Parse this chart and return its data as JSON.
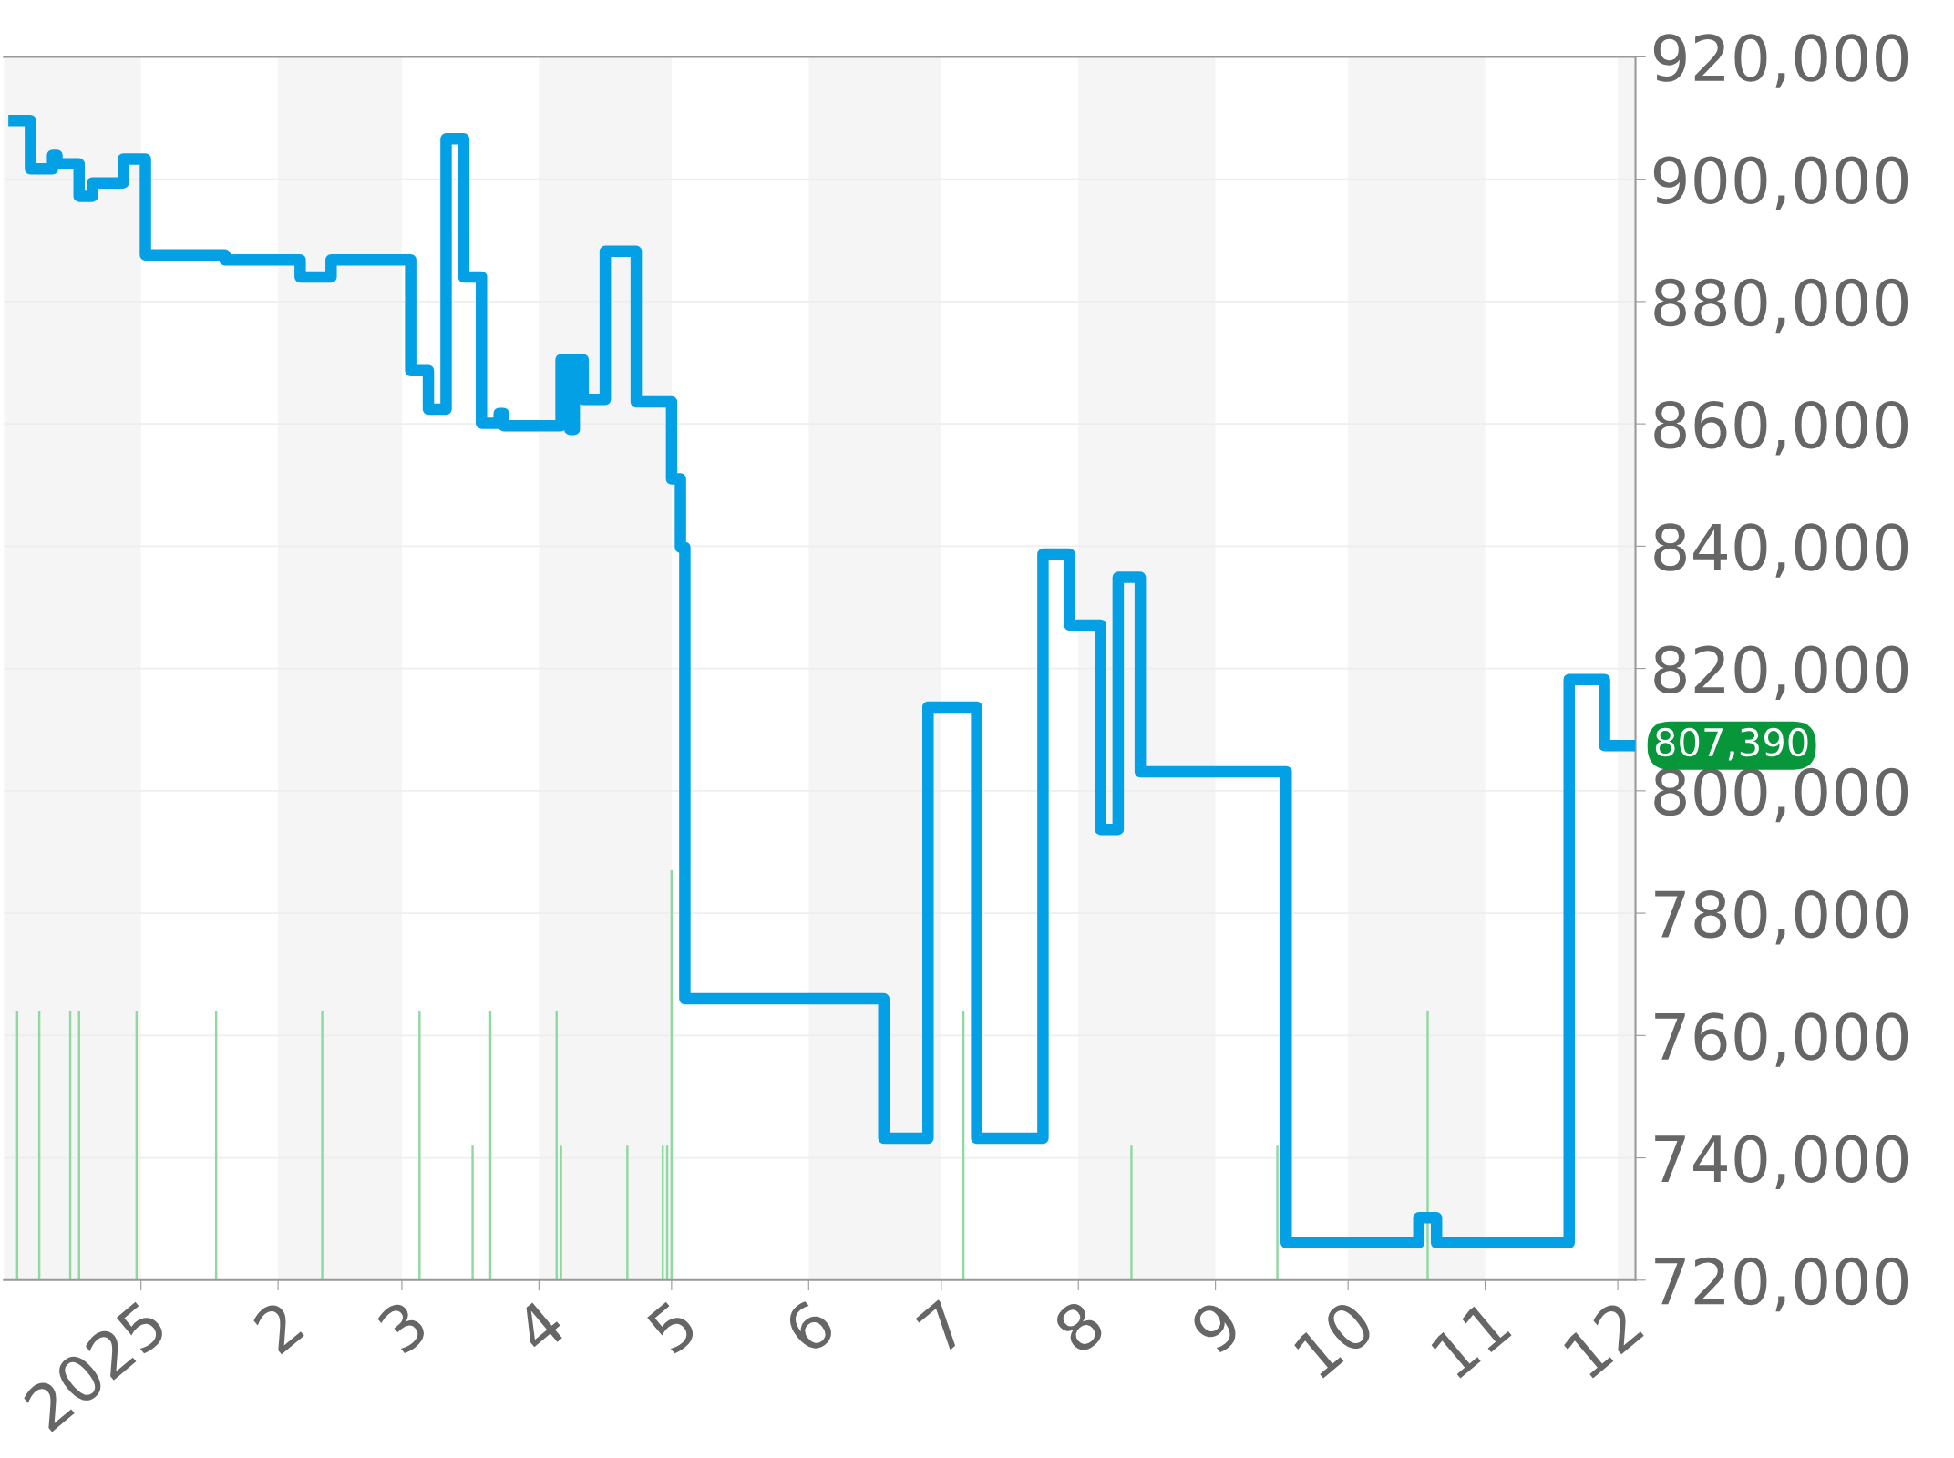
{
  "chart_data": {
    "type": "step",
    "xlim": [
      "2024-12-01",
      "2025-12-05"
    ],
    "xticks": [
      {
        "value": "2025-01-01",
        "label": "2025"
      },
      {
        "value": "2025-02-01",
        "label": "2"
      },
      {
        "value": "2025-03-01",
        "label": "3"
      },
      {
        "value": "2025-04-01",
        "label": "4"
      },
      {
        "value": "2025-05-01",
        "label": "5"
      },
      {
        "value": "2025-06-01",
        "label": "6"
      },
      {
        "value": "2025-07-01",
        "label": "7"
      },
      {
        "value": "2025-08-01",
        "label": "8"
      },
      {
        "value": "2025-09-01",
        "label": "9"
      },
      {
        "value": "2025-10-01",
        "label": "10"
      },
      {
        "value": "2025-11-01",
        "label": "11"
      },
      {
        "value": "2025-12-01",
        "label": "12"
      }
    ],
    "ylim": [
      720000,
      920000
    ],
    "yticks": [
      {
        "value": 720000,
        "label": "720,000"
      },
      {
        "value": 740000,
        "label": "740,000"
      },
      {
        "value": 760000,
        "label": "760,000"
      },
      {
        "value": 780000,
        "label": "780,000"
      },
      {
        "value": 800000,
        "label": "800,000"
      },
      {
        "value": 820000,
        "label": "820,000"
      },
      {
        "value": 840000,
        "label": "840,000"
      },
      {
        "value": 860000,
        "label": "860,000"
      },
      {
        "value": 880000,
        "label": "880,000"
      },
      {
        "value": 900000,
        "label": "900,000"
      },
      {
        "value": 920000,
        "label": "920,000"
      }
    ],
    "grid": "y",
    "series": [
      {
        "color": "#03a0e6",
        "x": [
          "2024-12-02",
          "2024-12-07",
          "2024-12-12",
          "2024-12-13",
          "2024-12-18",
          "2024-12-21",
          "2024-12-28",
          "2025-01-02",
          "2025-01-20",
          "2025-02-06",
          "2025-02-13",
          "2025-03-03",
          "2025-03-07",
          "2025-03-11",
          "2025-03-15",
          "2025-03-19",
          "2025-03-23",
          "2025-03-24",
          "2025-04-06",
          "2025-04-08",
          "2025-04-09",
          "2025-04-11",
          "2025-04-16",
          "2025-04-23",
          "2025-05-01",
          "2025-05-03",
          "2025-05-04",
          "2025-06-18",
          "2025-06-28",
          "2025-07-09",
          "2025-07-24",
          "2025-07-30",
          "2025-08-06",
          "2025-08-10",
          "2025-08-15",
          "2025-09-17",
          "2025-10-17",
          "2025-10-21",
          "2025-11-20",
          "2025-11-28",
          "2025-12-05"
        ],
        "values": [
          909600,
          901700,
          903900,
          902500,
          897200,
          899400,
          903300,
          887600,
          886800,
          884000,
          886800,
          868700,
          862400,
          906600,
          884000,
          860100,
          861700,
          859700,
          870500,
          859100,
          870500,
          864000,
          888200,
          863600,
          851000,
          839800,
          766000,
          743200,
          813700,
          743200,
          838700,
          827100,
          793700,
          834900,
          803100,
          726100,
          730200,
          726100,
          818200,
          807390,
          807390
        ]
      },
      {
        "type": "bar",
        "color": "#8fd9a0",
        "x": [
          "2024-12-04",
          "2024-12-09",
          "2024-12-16",
          "2024-12-18",
          "2024-12-31",
          "2025-01-18",
          "2025-02-11",
          "2025-03-05",
          "2025-03-17",
          "2025-03-21",
          "2025-04-05",
          "2025-04-06",
          "2025-04-21",
          "2025-04-29",
          "2025-04-30",
          "2025-05-01",
          "2025-07-06",
          "2025-08-13",
          "2025-09-15",
          "2025-10-19"
        ],
        "values": [
          764000,
          764000,
          764000,
          764000,
          764000,
          764000,
          764000,
          764000,
          742000,
          764000,
          764000,
          742000,
          742000,
          742000,
          742000,
          787000,
          764000,
          742000,
          742000,
          764000
        ]
      }
    ],
    "bands": [
      {
        "axis": "x",
        "from": "2024-12-01",
        "to": "2025-01-01",
        "color": "#f5f5f5"
      },
      {
        "axis": "x",
        "from": "2025-02-01",
        "to": "2025-03-01",
        "color": "#f5f5f5"
      },
      {
        "axis": "x",
        "from": "2025-04-01",
        "to": "2025-05-01",
        "color": "#f5f5f5"
      },
      {
        "axis": "x",
        "from": "2025-06-01",
        "to": "2025-07-01",
        "color": "#f5f5f5"
      },
      {
        "axis": "x",
        "from": "2025-08-01",
        "to": "2025-09-01",
        "color": "#f5f5f5"
      },
      {
        "axis": "x",
        "from": "2025-10-01",
        "to": "2025-11-01",
        "color": "#f5f5f5"
      },
      {
        "axis": "x",
        "from": "2025-12-01",
        "to": "2025-12-05",
        "color": "#f5f5f5"
      }
    ],
    "annotations": [
      {
        "text": "807,390",
        "x": "2025-12-05",
        "y": 807390
      }
    ],
    "legend": false
  }
}
